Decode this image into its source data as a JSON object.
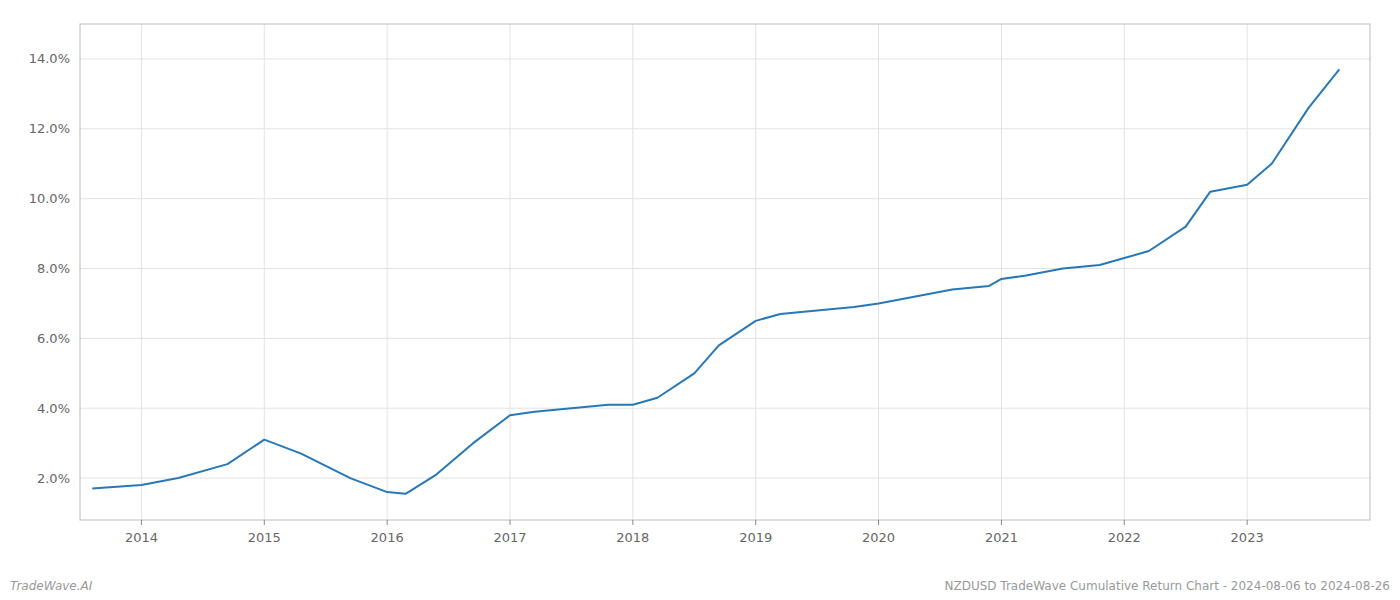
{
  "chart_data": {
    "type": "line",
    "x": [
      2013.6,
      2014.0,
      2014.3,
      2014.7,
      2015.0,
      2015.3,
      2015.7,
      2016.0,
      2016.15,
      2016.4,
      2016.7,
      2017.0,
      2017.2,
      2017.5,
      2017.8,
      2018.0,
      2018.2,
      2018.5,
      2018.7,
      2019.0,
      2019.2,
      2019.5,
      2019.8,
      2020.0,
      2020.3,
      2020.6,
      2020.9,
      2021.0,
      2021.2,
      2021.5,
      2021.8,
      2022.0,
      2022.2,
      2022.5,
      2022.7,
      2023.0,
      2023.2,
      2023.5,
      2023.75
    ],
    "values": [
      0.017,
      0.018,
      0.02,
      0.024,
      0.031,
      0.027,
      0.02,
      0.016,
      0.0155,
      0.021,
      0.03,
      0.038,
      0.039,
      0.04,
      0.041,
      0.041,
      0.043,
      0.05,
      0.058,
      0.065,
      0.067,
      0.068,
      0.069,
      0.07,
      0.072,
      0.074,
      0.075,
      0.077,
      0.078,
      0.08,
      0.081,
      0.083,
      0.085,
      0.092,
      0.102,
      0.104,
      0.11,
      0.126,
      0.137
    ],
    "color": "#2878b8",
    "xlim": [
      2013.5,
      2024.0
    ],
    "xticks": [
      2014,
      2015,
      2016,
      2017,
      2018,
      2019,
      2020,
      2021,
      2022,
      2023
    ],
    "ylim": [
      0.008,
      0.15
    ],
    "yticks": [
      {
        "value": 0.02,
        "label": "2.0%"
      },
      {
        "value": 0.04,
        "label": "4.0%"
      },
      {
        "value": 0.06,
        "label": "6.0%"
      },
      {
        "value": 0.08,
        "label": "8.0%"
      },
      {
        "value": 0.1,
        "label": "10.0%"
      },
      {
        "value": 0.12,
        "label": "12.0%"
      },
      {
        "value": 0.14,
        "label": "14.0%"
      }
    ],
    "grid": true,
    "annotations": [
      "TradeWave.AI",
      "NZDUSD TradeWave Cumulative Return Chart - 2024-08-06 to 2024-08-26"
    ]
  }
}
